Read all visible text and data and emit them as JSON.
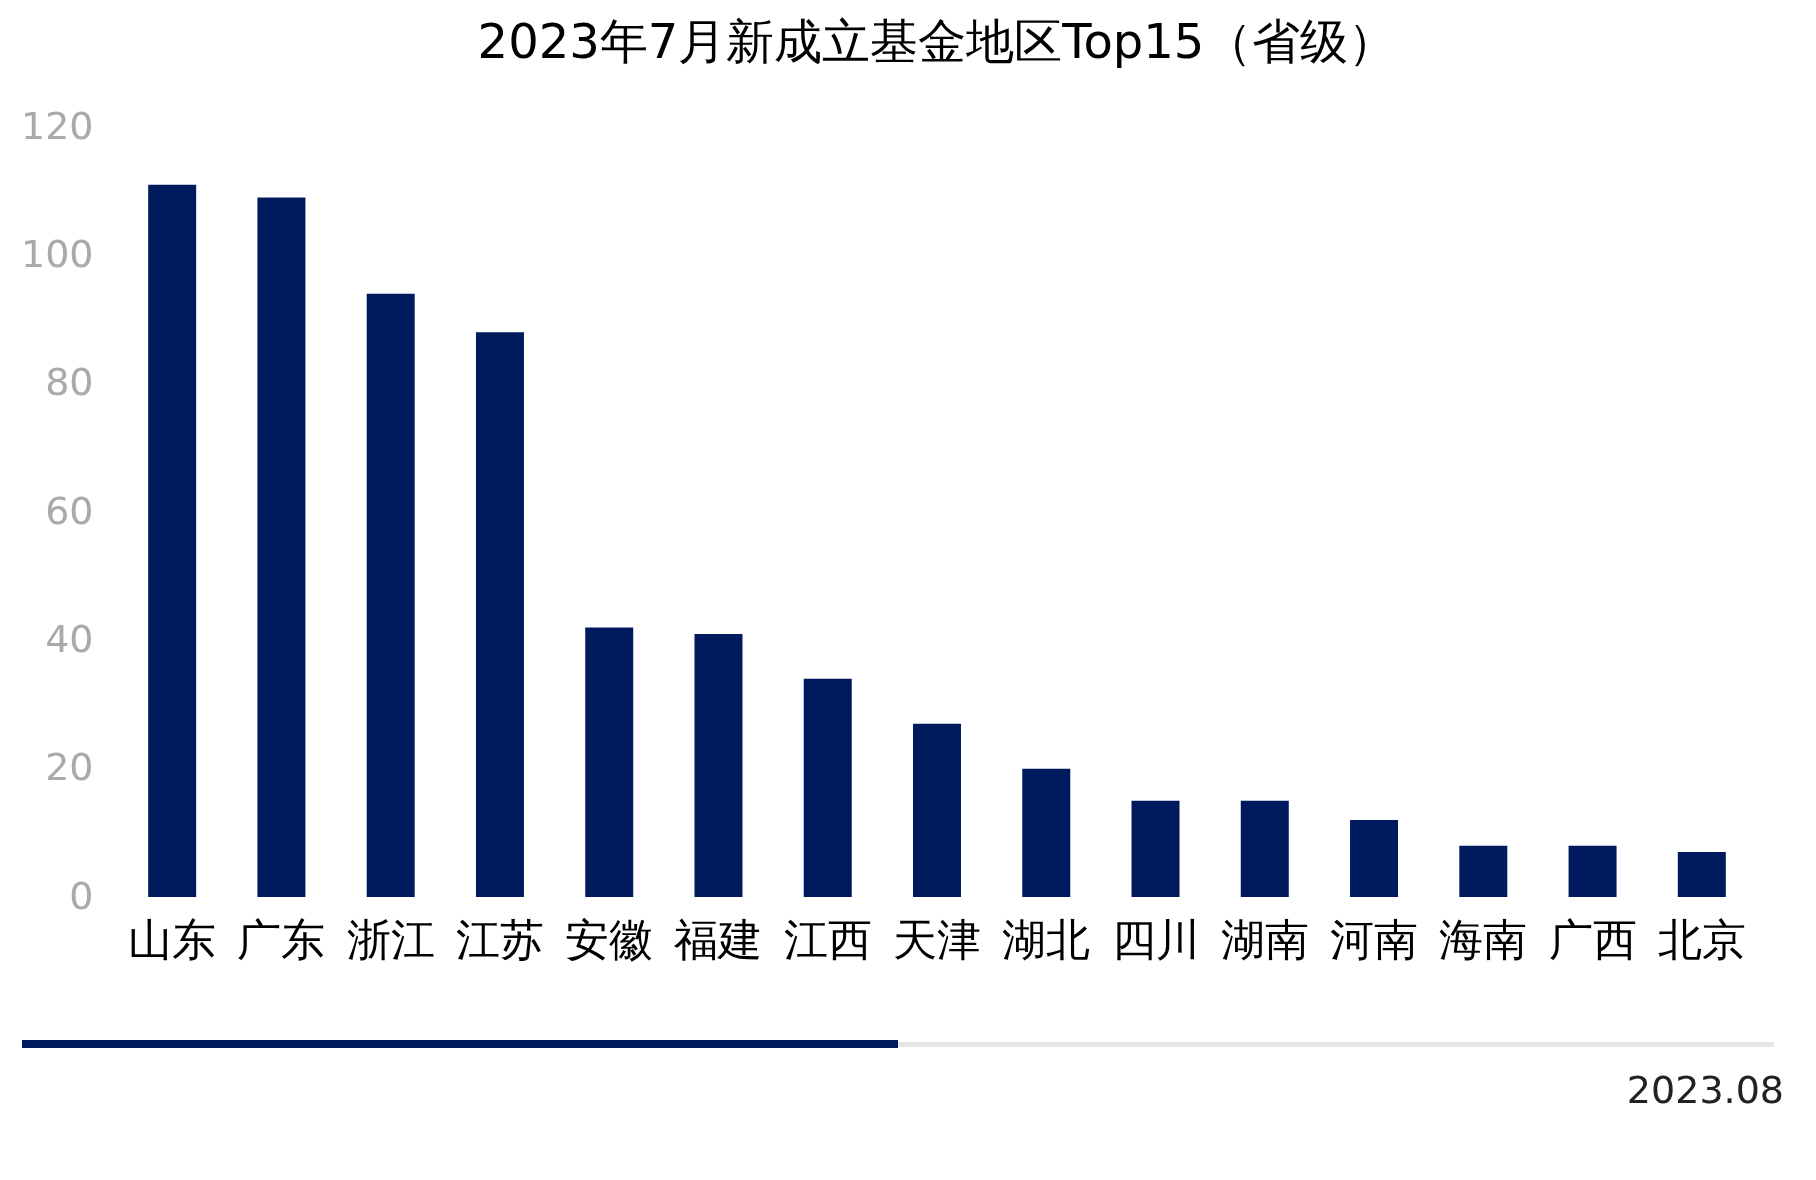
{
  "chart_data": {
    "type": "bar",
    "title": "2023年7月新成立基金地区Top15（省级）",
    "categories": [
      "山东",
      "广东",
      "浙江",
      "江苏",
      "安徽",
      "福建",
      "江西",
      "天津",
      "湖北",
      "四川",
      "湖南",
      "河南",
      "海南",
      "广西",
      "北京"
    ],
    "values": [
      111,
      109,
      94,
      88,
      42,
      41,
      34,
      27,
      20,
      15,
      15,
      12,
      8,
      8,
      7
    ],
    "color": "#001a5e",
    "ylim": [
      0,
      120
    ],
    "yticks": [
      0,
      20,
      40,
      60,
      80,
      100,
      120
    ],
    "grid": false,
    "annotations": [
      "2023.08"
    ]
  }
}
